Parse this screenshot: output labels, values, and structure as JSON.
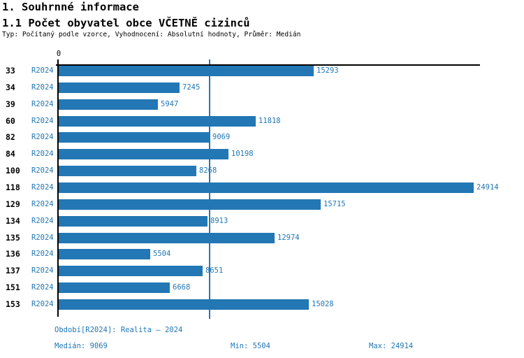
{
  "header": {
    "title": "1. Souhrnné informace",
    "subtitle": "1.1 Počet obyvatel obce VČETNĚ cizinců",
    "meta": "Typ: Počítaný podle vzorce, Vyhodnocení: Absolutní hodnoty, Průměr: Medián"
  },
  "colors": {
    "accent": "#2277b4",
    "axis": "#000000"
  },
  "chart_data": {
    "type": "bar",
    "orientation": "horizontal",
    "zero_tick_label": "0",
    "series_label": "R2024",
    "categories": [
      "33",
      "34",
      "39",
      "60",
      "82",
      "84",
      "100",
      "118",
      "129",
      "134",
      "135",
      "136",
      "137",
      "151",
      "153"
    ],
    "values": [
      15293,
      7245,
      5947,
      11818,
      9069,
      10198,
      8268,
      24914,
      15715,
      8913,
      12974,
      5504,
      8651,
      6668,
      15028
    ],
    "value_labels": [
      "15293",
      "7245",
      "5947",
      "11818",
      "9069",
      "10198",
      "8268",
      "24914",
      "15715",
      "8913",
      "12974",
      "5504",
      "8651",
      "6668",
      "15028"
    ],
    "xlim": [
      0,
      25000
    ],
    "median_reference_line": 9069,
    "grid": false,
    "legend": false
  },
  "footer": {
    "period": "Období[R2024]: Realita – 2024",
    "median_label": "Medián:",
    "median_value": "9069",
    "min_label": "Min:",
    "min_value": "5504",
    "max_label": "Max:",
    "max_value": "24914"
  }
}
